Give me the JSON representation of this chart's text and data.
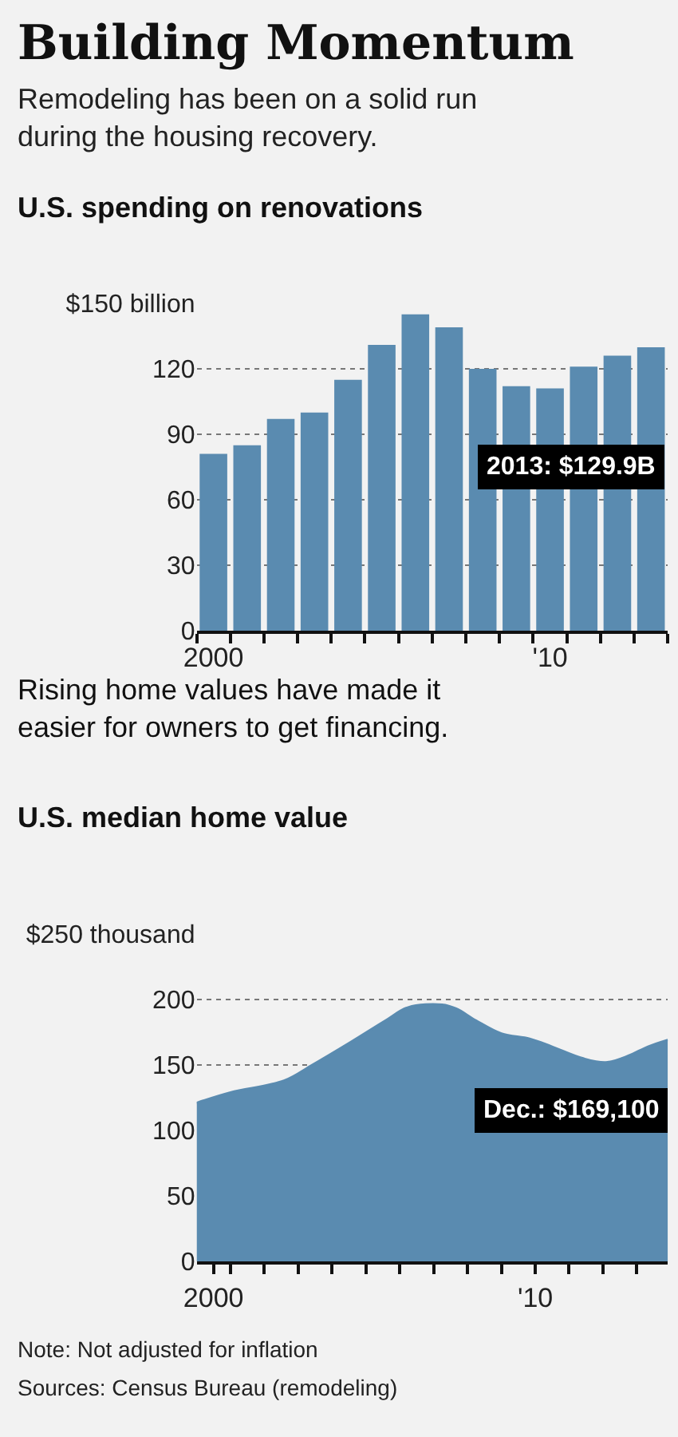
{
  "chart_data": [
    {
      "type": "bar",
      "title": "Building Momentum",
      "subtitle": "Remodeling has been on a solid run during the housing recovery.",
      "ylabel": "U.S. spending on renovations",
      "categories": [
        "2000",
        null,
        null,
        null,
        null,
        null,
        null,
        null,
        null,
        null,
        "'10",
        null,
        null,
        null
      ],
      "series": [
        {
          "color": "#5a8bb0",
          "values": [
            81,
            85,
            97,
            100,
            115,
            131,
            145,
            139,
            120,
            112,
            111,
            121,
            126,
            129.9
          ]
        }
      ],
      "ylim": [
        0,
        150
      ],
      "yticks": [
        0,
        30,
        60,
        90,
        120,
        {
          "value": 150,
          "label": "$150 billion"
        }
      ],
      "grid": "y",
      "annotations": [
        "2013: $129.9B"
      ]
    },
    {
      "type": "area",
      "title": "Rising home values have made it easier for owners to get financing.",
      "ylabel": "U.S. median home value",
      "x": [
        "2000-01",
        "2001-01",
        "2002-08",
        "2003-06",
        "2004-08",
        "2005-08",
        "2006-04",
        "2007-04",
        "2007-09",
        "2008-04",
        "2009-01",
        "2009-11",
        "2010-07",
        "2011-06",
        "2012-02",
        "2012-10",
        "2013-05",
        "2013-12"
      ],
      "series": [
        {
          "color": "#5a8bb0",
          "values": [
            121,
            129,
            138,
            150,
            168,
            184,
            194,
            196,
            193,
            184,
            174,
            170,
            164,
            155,
            152,
            157,
            164,
            169.1
          ]
        }
      ],
      "xlim": [
        "2000-01",
        "2013-12"
      ],
      "xticks": [
        {
          "value": "2000-07",
          "label": "2000"
        },
        {
          "value": "2001-01",
          "label": null
        },
        {
          "value": "2002-01",
          "label": null
        },
        {
          "value": "2003-01",
          "label": null
        },
        {
          "value": "2004-01",
          "label": null
        },
        {
          "value": "2005-01",
          "label": null
        },
        {
          "value": "2006-01",
          "label": null
        },
        {
          "value": "2007-01",
          "label": null
        },
        {
          "value": "2008-01",
          "label": null
        },
        {
          "value": "2009-01",
          "label": null
        },
        {
          "value": "2010-01",
          "label": "'10"
        },
        {
          "value": "2011-01",
          "label": null
        },
        {
          "value": "2012-01",
          "label": null
        },
        {
          "value": "2013-01",
          "label": null
        }
      ],
      "ylim": [
        0,
        250
      ],
      "yticks": [
        0,
        50,
        100,
        150,
        200,
        {
          "value": 250,
          "label": "$250 thousand"
        }
      ],
      "grid": "y",
      "annotations": [
        {
          "text": "Dec.: $169,100",
          "x": "2013-12",
          "y": 169.1
        },
        "Note: Not adjusted for inflation",
        "Sources: Census Bureau (remodeling)"
      ]
    }
  ]
}
